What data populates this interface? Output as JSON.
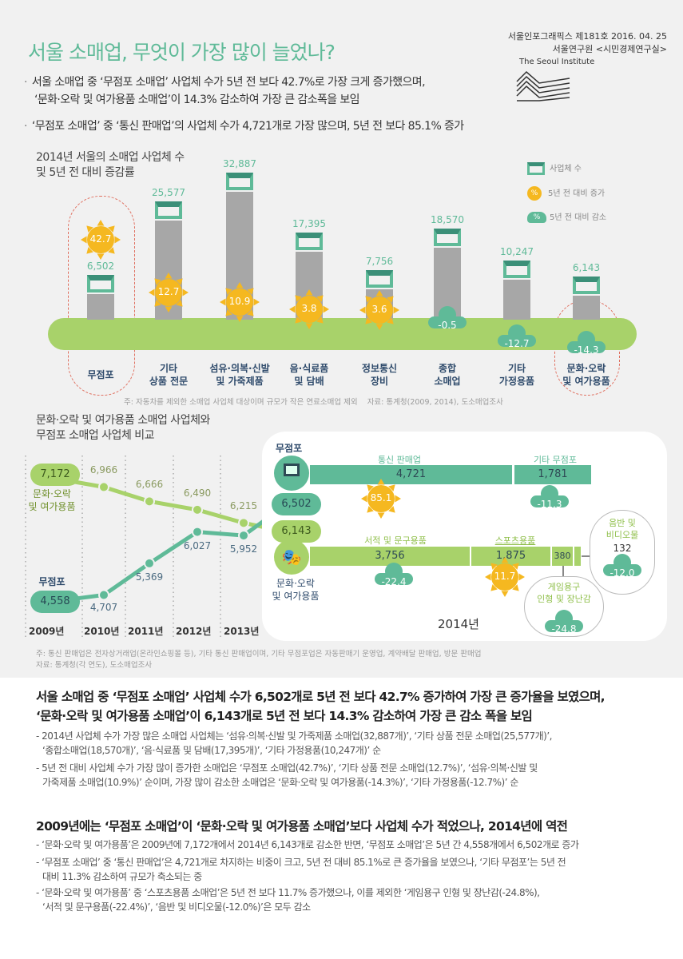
{
  "header": {
    "title": "서울 소매업, 무엇이 가장 많이 늘었나?",
    "issue": "서울인포그래픽스 제181호 2016. 04. 25",
    "org": "서울연구원 <시민경제연구실>",
    "org_en": "The Seoul Institute"
  },
  "bullets": [
    {
      "line1": "서울 소매업 중 ‘무점포 소매업’ 사업체 수가 5년 전 보다 42.7%로 가장 크게 증가했으며,",
      "line2": "‘문화·오락 및 여가용품 소매업’이 14.3% 감소하여 가장 큰 감소폭을 보임"
    },
    {
      "line1": "‘무점포 소매업’ 중 ‘통신 판매업’의 사업체 수가 4,721개로 가장 많으며, 5년 전 보다 85.1% 증가"
    }
  ],
  "legend": {
    "count": "사업체 수",
    "increase": "5년 전 대비 증가",
    "decrease": "5년 전 대비 감소",
    "pct": "%"
  },
  "colors": {
    "green": "#5fba98",
    "lime": "#a8d26a",
    "sun": "#f5b820",
    "bar": "#a7a7a7"
  },
  "chart_data": [
    {
      "type": "bar",
      "title_line1": "2014년 서울의 소매업 사업체 수",
      "title_line2": "및 5년 전 대비 증감률",
      "categories": [
        [
          "무점포"
        ],
        [
          "기타",
          "상품 전문"
        ],
        [
          "섬유·의복·신발",
          "및 가죽제품"
        ],
        [
          "음·식료품",
          "및 담배"
        ],
        [
          "정보통신",
          "장비"
        ],
        [
          "종합",
          "소매업"
        ],
        [
          "기타",
          "가정용품"
        ],
        [
          "문화·오락",
          "및 여가용품"
        ]
      ],
      "values": [
        6502,
        25577,
        32887,
        17395,
        7756,
        18570,
        10247,
        6143
      ],
      "value_labels": [
        "6,502",
        "25,577",
        "32,887",
        "17,395",
        "7,756",
        "18,570",
        "10,247",
        "6,143"
      ],
      "change_pct": [
        42.7,
        12.7,
        10.9,
        3.8,
        3.6,
        -0.5,
        -12.7,
        -14.3
      ],
      "note": "주: 자동차를 제외한 소매업 사업체 대상이며 규모가 작은 연료소매업 제외",
      "source": "자료: 통계청(2009, 2014), 도소매업조사"
    },
    {
      "type": "line",
      "title_line1": "문화·오락 및 여가용품 소매업 사업체와",
      "title_line2": "무점포 소매업 사업체 비교",
      "x": [
        "2009년",
        "2010년",
        "2011년",
        "2012년",
        "2013년"
      ],
      "series": [
        {
          "name": "문화·오락 및 여가용품",
          "values": [
            7172,
            6966,
            6666,
            6490,
            6215
          ],
          "labels": [
            "7,172",
            "6,966",
            "6,666",
            "6,490",
            "6,215"
          ],
          "value_2014": "6,143"
        },
        {
          "name": "무점포",
          "values": [
            4558,
            4707,
            5369,
            6027,
            5952
          ],
          "labels": [
            "4,558",
            "4,707",
            "5,369",
            "6,027",
            "5,952"
          ],
          "value_2014": "6,502"
        }
      ],
      "series_label_a": [
        "문화·오락",
        "및 여가용품"
      ],
      "series_label_b": "무점포"
    },
    {
      "type": "bar",
      "title": "2014년",
      "groups": [
        {
          "name": "무점포",
          "items": [
            {
              "name": "통신 판매업",
              "value": 4721,
              "label": "4,721",
              "change": "85.1"
            },
            {
              "name": "기타 무점포",
              "value": 1781,
              "label": "1,781",
              "change": "-11.3"
            }
          ]
        },
        {
          "name_line1": "문화·오락",
          "name_line2": "및 여가용품",
          "items": [
            {
              "name": "서적 및 문구용품",
              "value": 3756,
              "label": "3,756",
              "change": "-22.4"
            },
            {
              "name": "스포츠용품",
              "value": 1875,
              "label": "1,875",
              "change": "11.7"
            },
            {
              "name_line1": "게임용구",
              "name_line2": "인형 및 장난감",
              "value": 380,
              "label": "380",
              "change": "-24.8"
            },
            {
              "name_line1": "음반 및",
              "name_line2": "비디오물",
              "value": 132,
              "label": "132",
              "change": "-12.0"
            }
          ]
        }
      ]
    }
  ],
  "footnote": {
    "line1": "주: 통신 판매업은 전자상거래업(온라인쇼핑몰 등), 기타 통신 판매업이며, 기타 무점포업은 자동판매기 운영업, 계약배달 판매업, 방문 판매업",
    "line2": "자료: 통계청(각 연도), 도소매업조사"
  },
  "summary1": {
    "h1": "서울 소매업 중 ‘무점포 소매업’ 사업체 수가 6,502개로 5년 전 보다 42.7% 증가하여 가장 큰 증가율을 보였으며,",
    "h2": "‘문화·오락 및 여가용품 소매업’이 6,143개로 5년 전 보다 14.3% 감소하여 가장 큰 감소 폭을 보임",
    "p1a": "- 2014년 사업체 수가 가장 많은 소매업 사업체는 ‘섬유·의복·신발 및 가죽제품 소매업(32,887개)’, ‘기타 상품 전문 소매업(25,577개)’,",
    "p1b": "‘종합소매업(18,570개)’, ‘음·식료품 및 담배(17,395개)’, ‘기타 가정용품(10,247개)’ 순",
    "p2a": "- 5년 전 대비 사업체 수가 가장 많이 증가한 소매업은 ‘무점포 소매업(42.7%)’, ‘기타 상품 전문 소매업(12.7%)’, ‘섬유·의복·신발 및",
    "p2b": "가죽제품 소매업(10.9%)’ 순이며, 가장 많이 감소한 소매업은 ‘문화·오락 및 여가용품(-14.3%)’, ‘기타 가정용품(-12.7%)’ 순"
  },
  "summary2": {
    "h1": "2009년에는 ‘무점포 소매업’이 ‘문화·오락 및 여가용품 소매업’보다 사업체 수가 적었으나, 2014년에 역전",
    "p1": "- ‘문화·오락 및 여가용품’은 2009년에 7,172개에서 2014년 6,143개로 감소한 반면, ‘무점포 소매업’은 5년 간 4,558개에서 6,502개로 증가",
    "p2a": "- ‘무점포 소매업’ 중 ‘통신 판매업’은 4,721개로 차지하는 비중이 크고, 5년 전 대비 85.1%로 큰 증가율을 보였으나, ‘기타 무점포’는 5년 전",
    "p2b": "대비 11.3% 감소하여 규모가 축소되는 중",
    "p3a": "- ‘문화·오락 및 여가용품’ 중 ‘스포츠용품 소매업’은 5년 전 보다 11.7% 증가했으나, 이를 제외한 ‘게임용구 인형 및 장난감(-24.8%),",
    "p3b": "‘서적 및 문구용품(-22.4%)’, ‘음반 및 비디오물(-12.0%)’은 모두 감소"
  }
}
